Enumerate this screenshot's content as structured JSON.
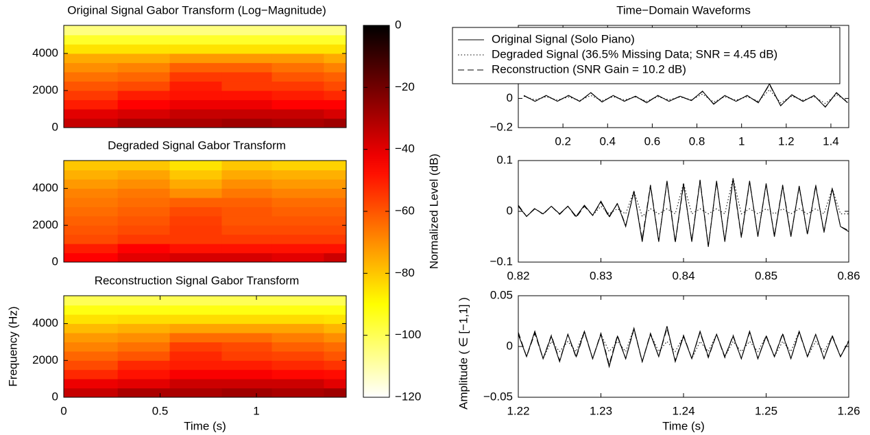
{
  "chart_data": [
    {
      "type": "heatmap",
      "title": "Original Signal Gabor Transform (Log−Magnitude)",
      "xbins": [
        0,
        0.28,
        0.55,
        0.82,
        1.08,
        1.35,
        1.466
      ],
      "ybins": [
        0,
        500,
        1000,
        1500,
        2000,
        2500,
        3000,
        3500,
        4000,
        4500,
        5000,
        5512.5
      ],
      "values": [
        [
          -35,
          -40,
          -50,
          -55,
          -60,
          -65,
          -70,
          -75,
          -85,
          -95,
          -105
        ],
        [
          -30,
          -38,
          -45,
          -50,
          -58,
          -63,
          -68,
          -75,
          -85,
          -95,
          -105
        ],
        [
          -30,
          -35,
          -42,
          -48,
          -50,
          -55,
          -62,
          -72,
          -85,
          -95,
          -105
        ],
        [
          -28,
          -35,
          -42,
          -48,
          -55,
          -55,
          -62,
          -72,
          -85,
          -95,
          -105
        ],
        [
          -30,
          -35,
          -45,
          -50,
          -55,
          -60,
          -65,
          -72,
          -85,
          -95,
          -105
        ],
        [
          -28,
          -38,
          -45,
          -52,
          -58,
          -62,
          -68,
          -75,
          -85,
          -95,
          -105
        ]
      ],
      "xlim": [
        0,
        1.466
      ],
      "ylim": [
        0,
        5512.5
      ],
      "yticks": [
        0,
        2000,
        4000
      ]
    },
    {
      "type": "heatmap",
      "title": "Degraded Signal Gabor Transform",
      "xbins": [
        0,
        0.28,
        0.55,
        0.82,
        1.08,
        1.35,
        1.466
      ],
      "ybins": [
        0,
        500,
        1000,
        1500,
        2000,
        2500,
        3000,
        3500,
        4000,
        4500,
        5000,
        5512.5
      ],
      "values": [
        [
          -45,
          -50,
          -58,
          -60,
          -62,
          -64,
          -66,
          -68,
          -72,
          -76,
          -80
        ],
        [
          -40,
          -45,
          -55,
          -58,
          -60,
          -62,
          -64,
          -66,
          -70,
          -74,
          -80
        ],
        [
          -38,
          -48,
          -55,
          -55,
          -56,
          -58,
          -62,
          -70,
          -75,
          -80,
          -85
        ],
        [
          -38,
          -48,
          -55,
          -58,
          -60,
          -60,
          -62,
          -66,
          -70,
          -75,
          -80
        ],
        [
          -40,
          -48,
          -55,
          -58,
          -60,
          -62,
          -64,
          -68,
          -72,
          -76,
          -82
        ],
        [
          -36,
          -48,
          -55,
          -58,
          -60,
          -62,
          -64,
          -68,
          -72,
          -76,
          -82
        ]
      ],
      "xlim": [
        0,
        1.466
      ],
      "ylim": [
        0,
        5512.5
      ],
      "yticks": [
        0,
        2000,
        4000
      ]
    },
    {
      "type": "heatmap",
      "title": "Reconstruction Signal Gabor Transform",
      "xlabel": "Time (s)",
      "ylabel": "Frequency (Hz)",
      "xbins": [
        0,
        0.28,
        0.55,
        0.82,
        1.08,
        1.35,
        1.466
      ],
      "ybins": [
        0,
        500,
        1000,
        1500,
        2000,
        2500,
        3000,
        3500,
        4000,
        4500,
        5000,
        5512.5
      ],
      "values": [
        [
          -35,
          -42,
          -52,
          -58,
          -63,
          -68,
          -72,
          -78,
          -85,
          -92,
          -100
        ],
        [
          -30,
          -40,
          -48,
          -52,
          -60,
          -65,
          -70,
          -76,
          -84,
          -92,
          -100
        ],
        [
          -30,
          -36,
          -44,
          -50,
          -52,
          -56,
          -64,
          -74,
          -84,
          -92,
          -100
        ],
        [
          -28,
          -36,
          -44,
          -50,
          -56,
          -58,
          -64,
          -74,
          -84,
          -92,
          -100
        ],
        [
          -30,
          -36,
          -46,
          -52,
          -57,
          -62,
          -67,
          -74,
          -84,
          -92,
          -100
        ],
        [
          -28,
          -40,
          -47,
          -54,
          -60,
          -64,
          -70,
          -77,
          -85,
          -92,
          -100
        ]
      ],
      "xlim": [
        0,
        1.466
      ],
      "ylim": [
        0,
        5512.5
      ],
      "xticks": [
        0,
        0.5,
        1
      ],
      "yticks": [
        0,
        2000,
        4000
      ]
    },
    {
      "type": "colorbar",
      "ylabel": "Normalized Level (dB)",
      "colormap": "hot",
      "ylim": [
        -120,
        0
      ],
      "yticks": [
        {
          "value": -120,
          "label": "−120"
        },
        {
          "value": -100,
          "label": "−100"
        },
        {
          "value": -80,
          "label": "−80"
        },
        {
          "value": -60,
          "label": "−60"
        },
        {
          "value": -40,
          "label": "−40"
        },
        {
          "value": -20,
          "label": "−20"
        },
        0
      ]
    },
    {
      "type": "line",
      "title": "Time−Domain Waveforms",
      "legend": "top",
      "x": [
        0.025,
        0.075,
        0.125,
        0.175,
        0.225,
        0.275,
        0.325,
        0.375,
        0.425,
        0.475,
        0.525,
        0.575,
        0.625,
        0.675,
        0.725,
        0.775,
        0.825,
        0.875,
        0.925,
        0.975,
        1.025,
        1.075,
        1.125,
        1.175,
        1.225,
        1.275,
        1.325,
        1.375,
        1.425,
        1.475
      ],
      "series": [
        {
          "name": "Original Signal (Solo Piano)",
          "color": "#000000",
          "dash": "solid",
          "values": [
            0.02,
            -0.02,
            0.02,
            -0.02,
            0.02,
            -0.02,
            0.04,
            -0.025,
            0.02,
            -0.02,
            0.015,
            -0.03,
            0.02,
            -0.02,
            0.015,
            -0.015,
            0.05,
            -0.04,
            0.02,
            -0.02,
            0.02,
            -0.03,
            0.1,
            -0.05,
            0.025,
            -0.02,
            0.02,
            -0.06,
            0.04,
            -0.03
          ]
        },
        {
          "name": "Degraded Signal (36.5% Missing Data; SNR = 4.45 dB)",
          "color": "#000000",
          "dash": "dotted",
          "values": [
            0.015,
            -0.01,
            0.012,
            -0.012,
            0.01,
            -0.015,
            0.02,
            -0.015,
            0.012,
            -0.01,
            0.01,
            -0.02,
            0.012,
            -0.01,
            0.01,
            -0.01,
            0.03,
            -0.025,
            0.012,
            -0.012,
            0.012,
            -0.02,
            0.06,
            -0.03,
            0.015,
            -0.012,
            0.012,
            -0.035,
            0.025,
            -0.02
          ]
        },
        {
          "name": "Reconstruction (SNR Gain = 10.2 dB)",
          "color": "#000000",
          "dash": "dashed",
          "values": [
            0.019,
            -0.02,
            0.02,
            -0.019,
            0.02,
            -0.02,
            0.038,
            -0.024,
            0.02,
            -0.019,
            0.015,
            -0.028,
            0.02,
            -0.02,
            0.015,
            -0.015,
            0.048,
            -0.038,
            0.02,
            -0.02,
            0.02,
            -0.028,
            0.095,
            -0.05,
            0.024,
            -0.02,
            0.02,
            -0.058,
            0.038,
            -0.03
          ]
        }
      ],
      "xlim": [
        0,
        1.48
      ],
      "ylim": [
        -0.2,
        0.5
      ],
      "xticks": [
        0.2,
        0.4,
        0.6,
        0.8,
        1,
        1.2,
        1.4
      ],
      "yticks": [
        {
          "value": -0.2,
          "label": "−0.2"
        },
        0
      ]
    },
    {
      "type": "line",
      "x": [
        0.82,
        0.821,
        0.822,
        0.823,
        0.824,
        0.825,
        0.826,
        0.827,
        0.828,
        0.829,
        0.83,
        0.831,
        0.832,
        0.833,
        0.834,
        0.835,
        0.836,
        0.837,
        0.838,
        0.839,
        0.84,
        0.841,
        0.842,
        0.843,
        0.844,
        0.845,
        0.846,
        0.847,
        0.848,
        0.849,
        0.85,
        0.851,
        0.852,
        0.853,
        0.854,
        0.855,
        0.856,
        0.857,
        0.858,
        0.859,
        0.86
      ],
      "series": [
        {
          "color": "#000000",
          "dash": "solid",
          "values": [
            0.01,
            -0.01,
            0.005,
            -0.005,
            0.01,
            -0.005,
            0.01,
            -0.01,
            0.012,
            -0.008,
            0.02,
            -0.01,
            0.015,
            -0.03,
            0.04,
            -0.06,
            0.05,
            -0.06,
            0.06,
            -0.06,
            0.055,
            -0.06,
            0.06,
            -0.07,
            0.06,
            -0.06,
            0.065,
            -0.05,
            0.06,
            -0.05,
            0.055,
            -0.05,
            0.05,
            -0.05,
            0.05,
            -0.045,
            0.05,
            -0.04,
            0.045,
            -0.03,
            -0.04
          ]
        },
        {
          "color": "#000000",
          "dash": "dotted",
          "values": [
            0.01,
            -0.01,
            0.005,
            -0.005,
            0.01,
            -0.005,
            0.01,
            -0.01,
            0.012,
            -0.008,
            0.01,
            -0.005,
            0.005,
            -0.005,
            0.04,
            -0.01,
            0.005,
            -0.005,
            0.005,
            -0.005,
            0.055,
            -0.005,
            0.005,
            -0.005,
            0.005,
            -0.005,
            0.065,
            -0.005,
            0.005,
            -0.005,
            0.005,
            -0.005,
            0.005,
            -0.005,
            0.005,
            -0.005,
            0.005,
            -0.005,
            0.045,
            -0.005,
            -0.005
          ]
        },
        {
          "color": "#000000",
          "dash": "dashed",
          "values": [
            0.012,
            -0.01,
            0.006,
            -0.006,
            0.01,
            -0.006,
            0.01,
            -0.012,
            0.01,
            -0.008,
            0.018,
            -0.012,
            0.016,
            -0.028,
            0.038,
            -0.055,
            0.052,
            -0.058,
            0.058,
            -0.062,
            0.052,
            -0.058,
            0.062,
            -0.068,
            0.058,
            -0.058,
            0.062,
            -0.052,
            0.058,
            -0.048,
            0.052,
            -0.048,
            0.052,
            -0.048,
            0.048,
            -0.046,
            0.052,
            -0.042,
            0.046,
            -0.03,
            -0.038
          ]
        }
      ],
      "xlim": [
        0.82,
        0.86
      ],
      "ylim": [
        -0.1,
        0.1
      ],
      "xticks": [
        0.82,
        0.83,
        0.84,
        0.85,
        0.86
      ],
      "yticks": [
        {
          "value": -0.1,
          "label": "−0.1"
        },
        0,
        0.1
      ]
    },
    {
      "type": "line",
      "xlabel": "Time (s)",
      "ylabel": "Amplitude ( ∈ [−1,1] )",
      "x": [
        1.22,
        1.221,
        1.222,
        1.223,
        1.224,
        1.225,
        1.226,
        1.227,
        1.228,
        1.229,
        1.23,
        1.231,
        1.232,
        1.233,
        1.234,
        1.235,
        1.236,
        1.237,
        1.238,
        1.239,
        1.24,
        1.241,
        1.242,
        1.243,
        1.244,
        1.245,
        1.246,
        1.247,
        1.248,
        1.249,
        1.25,
        1.251,
        1.252,
        1.253,
        1.254,
        1.255,
        1.256,
        1.257,
        1.258,
        1.259,
        1.26
      ],
      "series": [
        {
          "color": "#000000",
          "dash": "solid",
          "values": [
            0.012,
            -0.01,
            0.015,
            -0.012,
            0.01,
            -0.015,
            0.012,
            -0.01,
            0.015,
            -0.012,
            0.012,
            -0.02,
            0.01,
            -0.012,
            0.018,
            -0.015,
            0.012,
            -0.01,
            0.02,
            -0.015,
            0.01,
            -0.012,
            0.015,
            -0.01,
            0.012,
            -0.01,
            0.01,
            -0.012,
            0.015,
            -0.012,
            0.01,
            -0.01,
            0.012,
            -0.012,
            0.015,
            -0.01,
            0.012,
            -0.012,
            0.01,
            -0.01,
            0.005
          ]
        },
        {
          "color": "#000000",
          "dash": "dotted",
          "values": [
            0.012,
            -0.01,
            0.015,
            -0.012,
            0.005,
            -0.005,
            0.005,
            -0.005,
            0.015,
            -0.012,
            0.012,
            -0.005,
            0.005,
            -0.005,
            0.018,
            -0.015,
            0.012,
            -0.005,
            0.005,
            -0.005,
            0.01,
            -0.012,
            0.005,
            -0.005,
            0.012,
            -0.01,
            0.005,
            -0.005,
            0.005,
            -0.005,
            0.01,
            -0.01,
            0.005,
            -0.005,
            0.015,
            -0.01,
            0.005,
            -0.005,
            0.01,
            -0.01,
            0.005
          ]
        },
        {
          "color": "#000000",
          "dash": "dashed",
          "values": [
            0.014,
            -0.01,
            0.013,
            -0.012,
            0.011,
            -0.014,
            0.012,
            -0.011,
            0.014,
            -0.012,
            0.013,
            -0.018,
            0.011,
            -0.012,
            0.017,
            -0.015,
            0.013,
            -0.01,
            0.018,
            -0.014,
            0.011,
            -0.012,
            0.014,
            -0.011,
            0.012,
            -0.011,
            0.011,
            -0.012,
            0.014,
            -0.012,
            0.011,
            -0.01,
            0.013,
            -0.012,
            0.014,
            -0.01,
            0.012,
            -0.012,
            0.011,
            -0.01,
            0.006
          ]
        }
      ],
      "xlim": [
        1.22,
        1.26
      ],
      "ylim": [
        -0.05,
        0.05
      ],
      "xticks": [
        1.22,
        1.23,
        1.24,
        1.25,
        1.26
      ],
      "yticks": [
        {
          "value": -0.05,
          "label": "−0.05"
        },
        0,
        0.05
      ]
    }
  ]
}
